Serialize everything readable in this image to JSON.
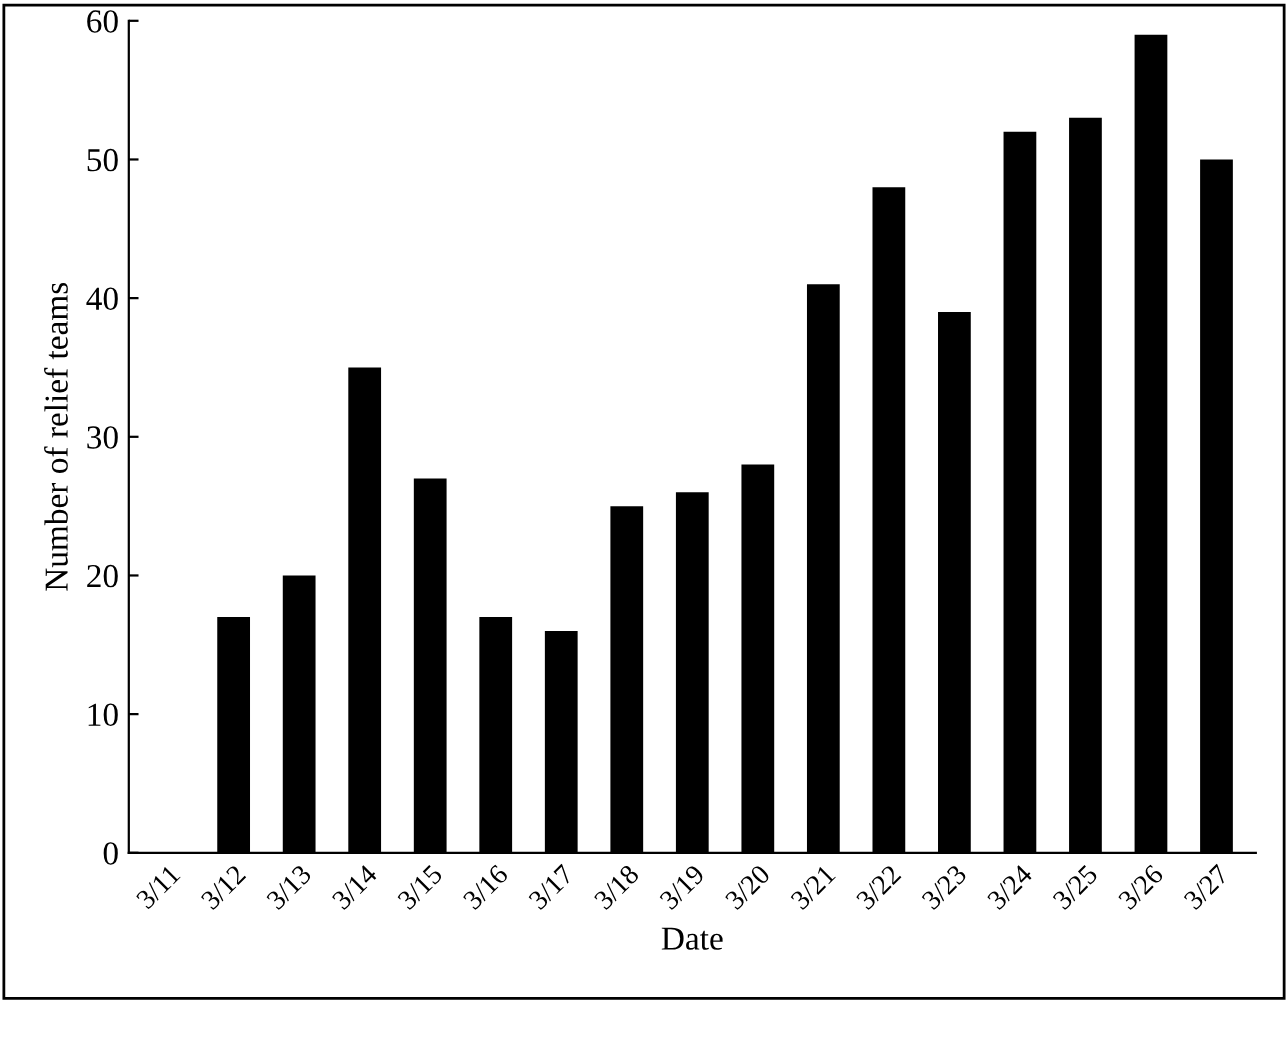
{
  "chart_data": {
    "type": "bar",
    "xlabel": "Date",
    "ylabel": "Number of relief teams",
    "categories": [
      "3/11",
      "3/12",
      "3/13",
      "3/14",
      "3/15",
      "3/16",
      "3/17",
      "3/18",
      "3/19",
      "3/20",
      "3/21",
      "3/22",
      "3/23",
      "3/24",
      "3/25",
      "3/26",
      "3/27"
    ],
    "values": [
      null,
      17,
      20,
      35,
      27,
      17,
      16,
      25,
      26,
      28,
      41,
      48,
      39,
      52,
      53,
      59,
      50
    ],
    "color": "#000000",
    "ylim": [
      0,
      60
    ],
    "yticks": [
      0,
      10,
      20,
      30,
      40,
      50,
      60
    ],
    "grid": false
  }
}
